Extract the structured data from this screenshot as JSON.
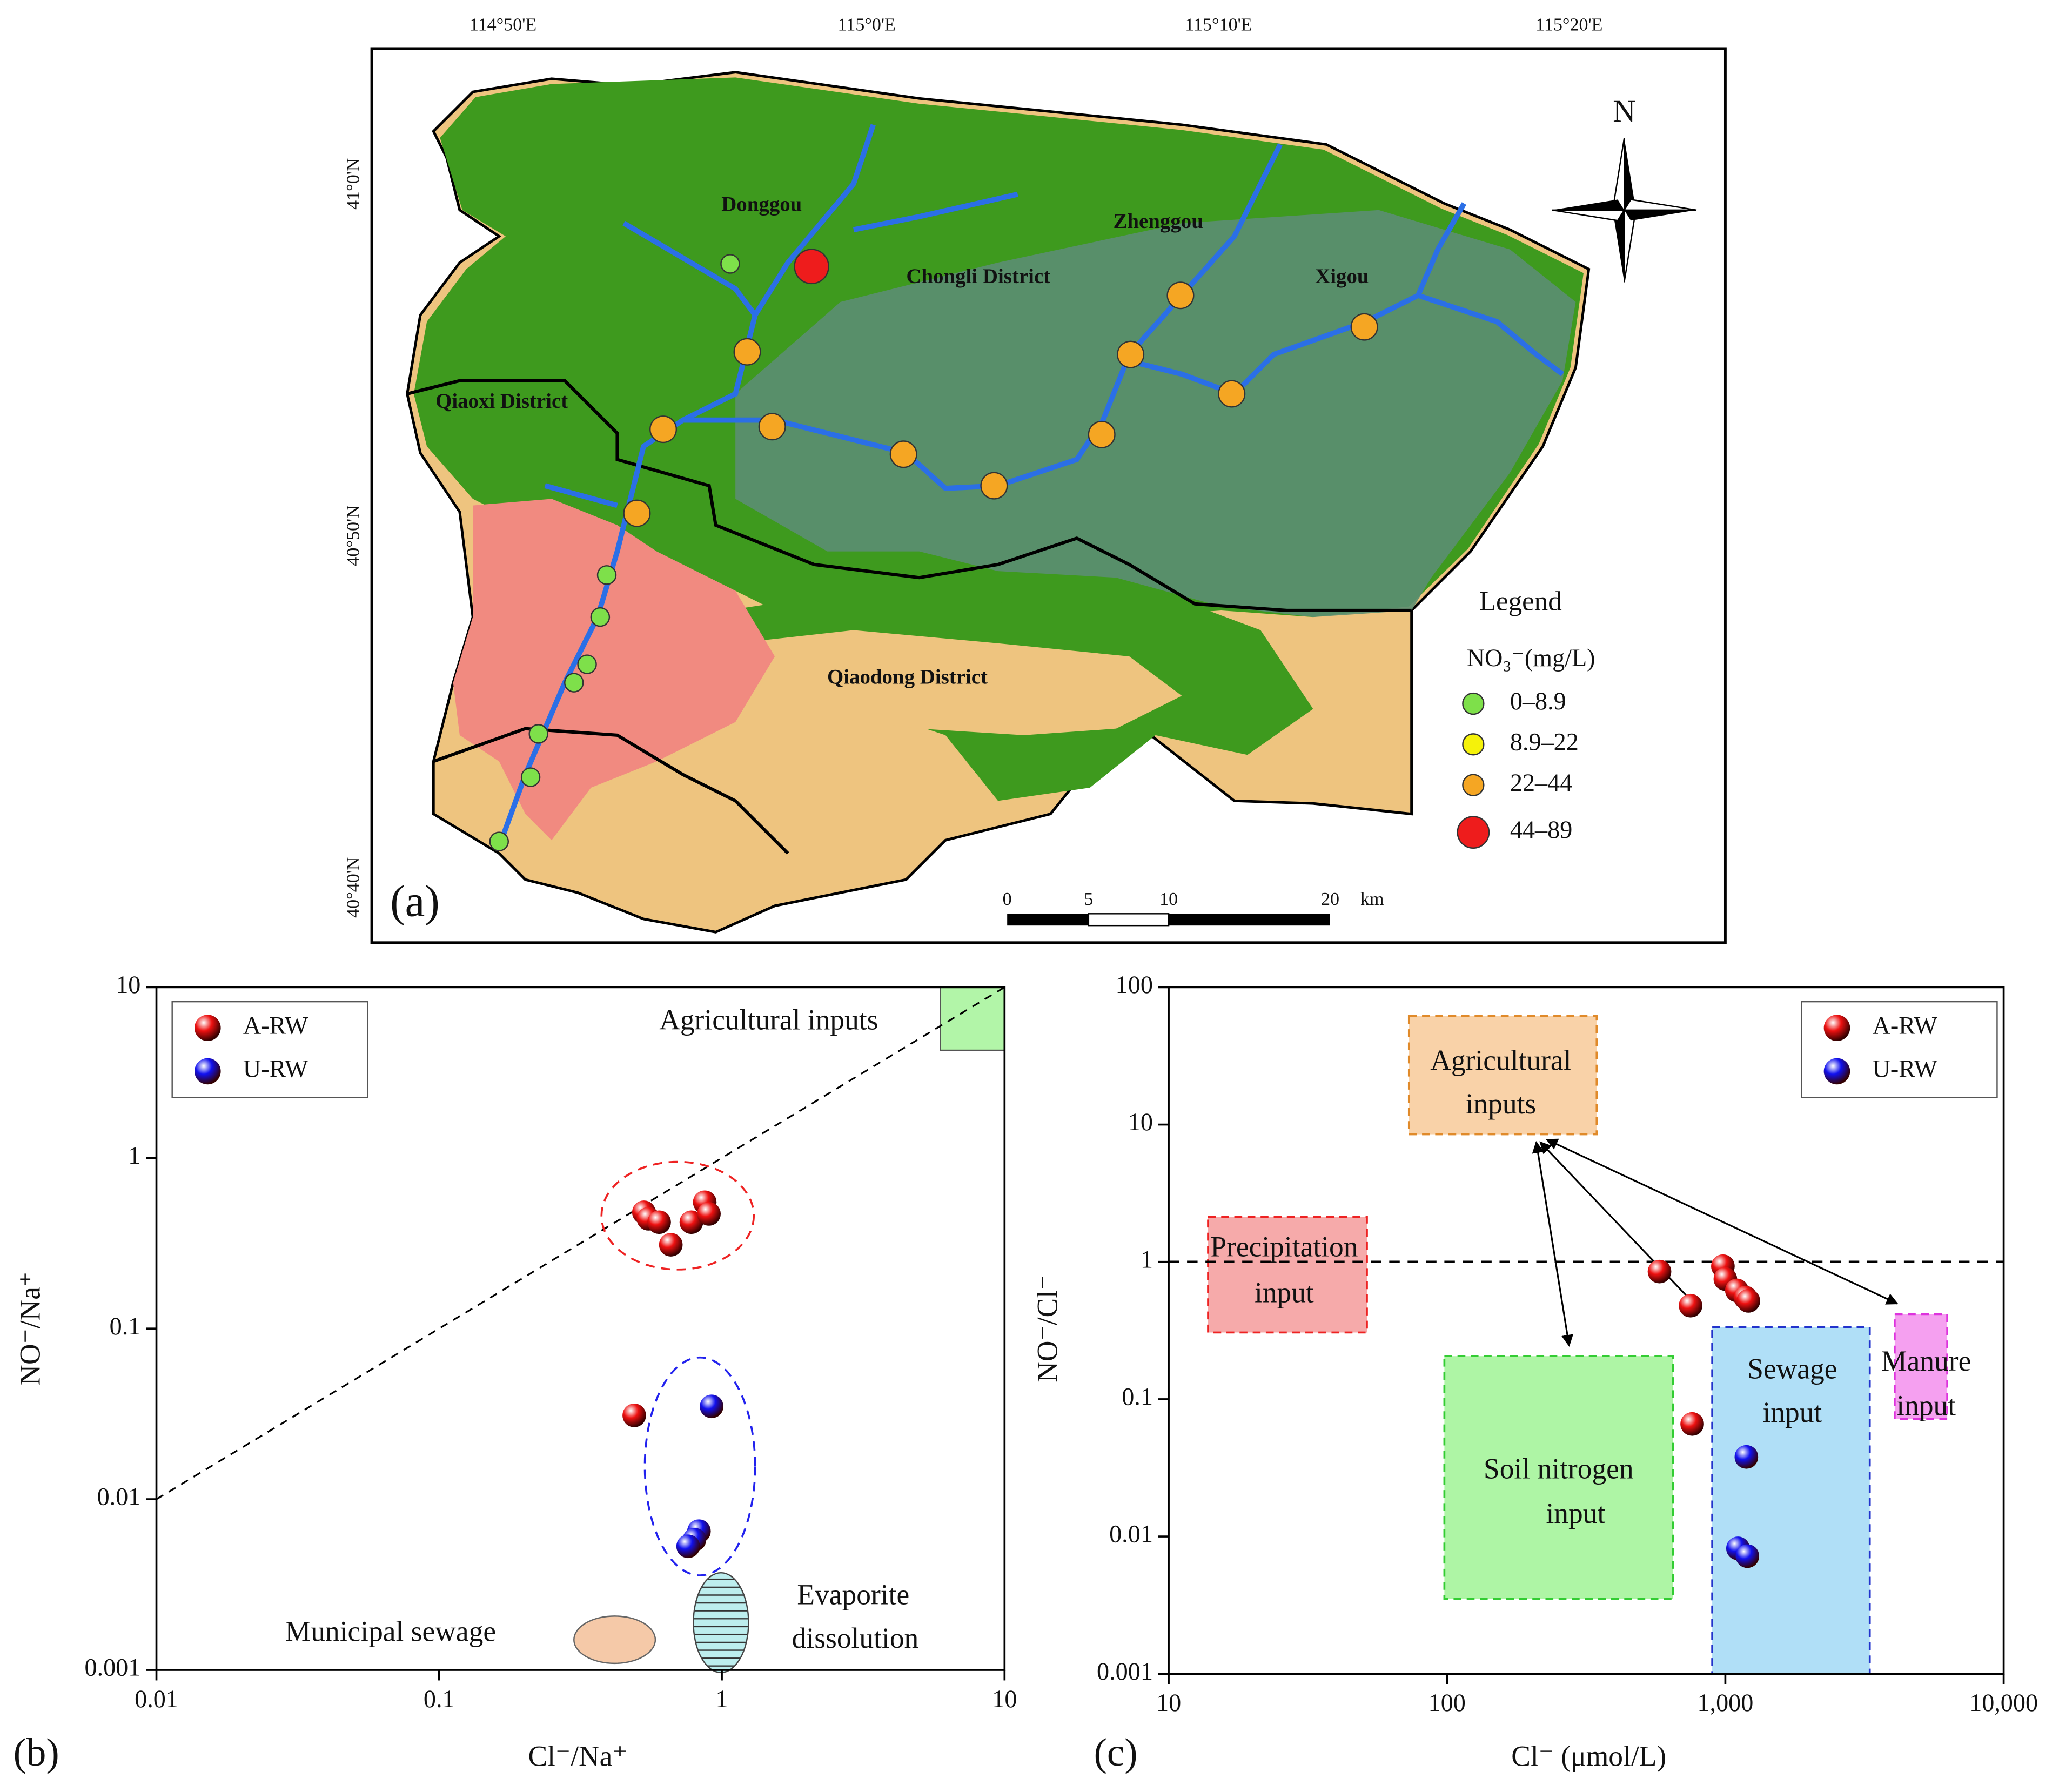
{
  "map": {
    "lon_labels": [
      "114°50'E",
      "115°0'E",
      "115°10'E",
      "115°20'E"
    ],
    "lat_labels": [
      "41°0'N",
      "40°50'N",
      "40°40'N"
    ],
    "places": [
      "Donggou",
      "Chongli District",
      "Zhenggou",
      "Xigou",
      "Qiaoxi District",
      "Qiaodong District"
    ],
    "legend": {
      "title": "Legend",
      "subtitle": "NO₃⁻(mg/L)",
      "items": [
        {
          "label": "0–8.9",
          "color": "#7ee04a"
        },
        {
          "label": "8.9–22",
          "color": "#f5f20a"
        },
        {
          "label": "22–44",
          "color": "#f5a623"
        },
        {
          "label": "44–89",
          "color": "#ee1c1c"
        }
      ]
    },
    "scale": [
      "0",
      "5",
      "10",
      "20",
      "km"
    ],
    "north": "N",
    "panel": "(a)"
  },
  "chart_data": [
    {
      "type": "scatter",
      "panel": "(b)",
      "x_label": "Cl⁻/Na⁺",
      "y_label": "NO⁻/Na⁺",
      "log_x": true,
      "log_y": true,
      "xlim": [
        0.01,
        10
      ],
      "ylim": [
        0.001,
        10
      ],
      "xticks": [
        0.01,
        0.1,
        1,
        10
      ],
      "yticks": [
        0.001,
        0.01,
        0.1,
        1,
        10
      ],
      "series": [
        {
          "name": "A-RW",
          "color": "#ee1111",
          "x": [
            0.53,
            0.55,
            0.6,
            0.66,
            0.78,
            0.87,
            0.9,
            0.49
          ],
          "values": [
            0.48,
            0.44,
            0.42,
            0.31,
            0.42,
            0.55,
            0.47,
            0.031
          ]
        },
        {
          "name": "U-RW",
          "color": "#1111ee",
          "x": [
            0.92,
            0.83,
            0.8,
            0.76
          ],
          "values": [
            0.035,
            0.0065,
            0.0058,
            0.0053
          ]
        }
      ],
      "annotations": [
        [
          "Agricultural inputs"
        ],
        [
          "Municipal sewage"
        ],
        [
          "Evaporite",
          "dissolution"
        ]
      ]
    },
    {
      "type": "scatter",
      "panel": "(c)",
      "x_label": "Cl⁻ (μmol/L)",
      "y_label": "NO⁻/Cl⁻",
      "log_x": true,
      "log_y": true,
      "xlim": [
        10,
        10000
      ],
      "ylim": [
        0.001,
        100
      ],
      "xticks": [
        10,
        100,
        {
          "value": 1000,
          "label": "1,000"
        },
        {
          "value": 10000,
          "label": "10,000"
        }
      ],
      "yticks": [
        0.001,
        0.01,
        0.1,
        1,
        10,
        100
      ],
      "series": [
        {
          "name": "A-RW",
          "color": "#ee1111",
          "x": [
            580,
            750,
            980,
            1000,
            1100,
            1180,
            1210,
            760
          ],
          "values": [
            0.85,
            0.48,
            0.93,
            0.75,
            0.62,
            0.55,
            0.52,
            0.066
          ]
        },
        {
          "name": "U-RW",
          "color": "#1111ee",
          "x": [
            1190,
            1110,
            1200
          ],
          "values": [
            0.038,
            0.0082,
            0.0072
          ]
        }
      ],
      "annotations": [
        [
          "Agricultural",
          "inputs"
        ],
        [
          "Precipitation",
          "input"
        ],
        [
          "Soil nitrogen",
          "input"
        ],
        [
          "Sewage",
          "input"
        ],
        [
          "Manure",
          "input"
        ]
      ]
    }
  ]
}
